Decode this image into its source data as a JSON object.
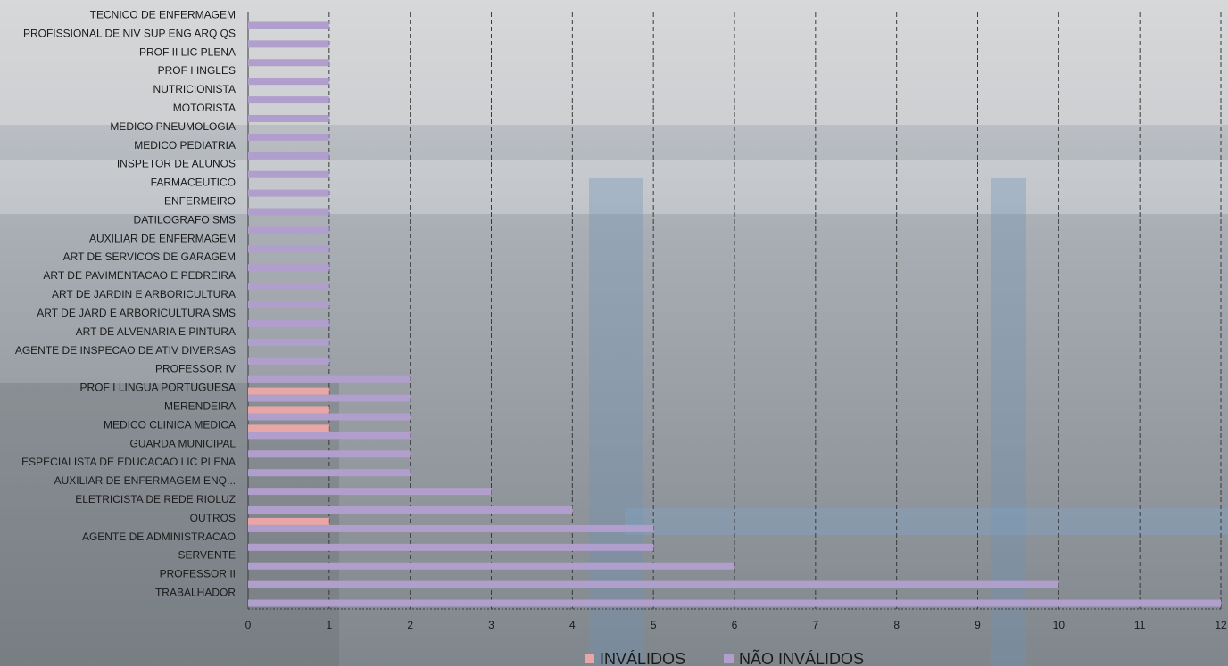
{
  "chart_data": {
    "type": "bar",
    "orientation": "horizontal",
    "categories": [
      "TECNICO DE ENFERMAGEM",
      "PROFISSIONAL DE NIV SUP ENG ARQ QS",
      "PROF II LIC PLENA",
      "PROF I INGLES",
      "NUTRICIONISTA",
      "MOTORISTA",
      "MEDICO PNEUMOLOGIA",
      "MEDICO PEDIATRIA",
      "INSPETOR DE ALUNOS",
      "FARMACEUTICO",
      "ENFERMEIRO",
      "DATILOGRAFO SMS",
      "AUXILIAR DE ENFERMAGEM",
      "ART DE SERVICOS DE GARAGEM",
      "ART DE PAVIMENTACAO E PEDREIRA",
      "ART DE JARDIN E ARBORICULTURA",
      "ART DE JARD E ARBORICULTURA SMS",
      "ART DE ALVENARIA E PINTURA",
      "AGENTE DE INSPECAO DE ATIV DIVERSAS",
      "PROFESSOR IV",
      "PROF I LINGUA PORTUGUESA",
      "MERENDEIRA",
      "MEDICO CLINICA MEDICA",
      "GUARDA MUNICIPAL",
      "ESPECIALISTA DE EDUCACAO LIC PLENA",
      "AUXILIAR DE ENFERMAGEM ENQ...",
      "ELETRICISTA DE REDE RIOLUZ",
      "OUTROS",
      "AGENTE DE ADMINISTRACAO",
      "SERVENTE",
      "PROFESSOR II",
      "TRABALHADOR"
    ],
    "series": [
      {
        "name": "INVÁLIDOS",
        "color": "#e8a7a6",
        "values": [
          0,
          0,
          0,
          0,
          0,
          0,
          0,
          0,
          0,
          0,
          0,
          0,
          0,
          0,
          0,
          0,
          0,
          0,
          0,
          0,
          1,
          1,
          1,
          0,
          0,
          0,
          0,
          1,
          0,
          0,
          0,
          0
        ]
      },
      {
        "name": "NÃO INVÁLIDOS",
        "color": "#b09fcc",
        "values": [
          1,
          1,
          1,
          1,
          1,
          1,
          1,
          1,
          1,
          1,
          1,
          1,
          1,
          1,
          1,
          1,
          1,
          1,
          1,
          2,
          2,
          2,
          2,
          2,
          2,
          3,
          4,
          5,
          5,
          6,
          10,
          12
        ]
      }
    ],
    "xlim": [
      0,
      12
    ],
    "xticks": [
      "0",
      "1",
      "2",
      "3",
      "4",
      "5",
      "6",
      "7",
      "8",
      "9",
      "10",
      "11",
      "12"
    ],
    "grid": "vertical dashed",
    "legend_position": "bottom"
  }
}
